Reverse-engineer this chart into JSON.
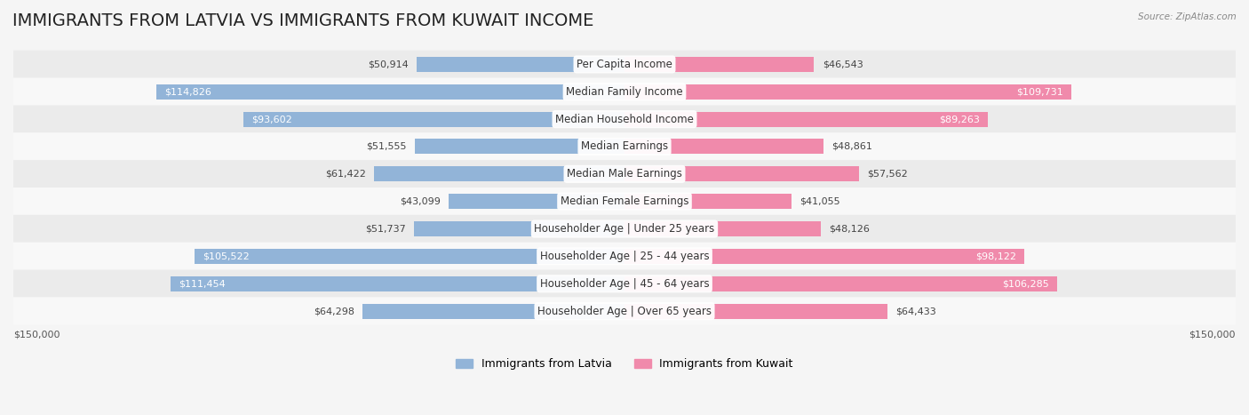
{
  "title": "IMMIGRANTS FROM LATVIA VS IMMIGRANTS FROM KUWAIT INCOME",
  "source": "Source: ZipAtlas.com",
  "categories": [
    "Per Capita Income",
    "Median Family Income",
    "Median Household Income",
    "Median Earnings",
    "Median Male Earnings",
    "Median Female Earnings",
    "Householder Age | Under 25 years",
    "Householder Age | 25 - 44 years",
    "Householder Age | 45 - 64 years",
    "Householder Age | Over 65 years"
  ],
  "latvia_values": [
    50914,
    114826,
    93602,
    51555,
    61422,
    43099,
    51737,
    105522,
    111454,
    64298
  ],
  "kuwait_values": [
    46543,
    109731,
    89263,
    48861,
    57562,
    41055,
    48126,
    98122,
    106285,
    64433
  ],
  "latvia_color": "#92b4d8",
  "kuwait_color": "#f08aab",
  "latvia_label": "Immigrants from Latvia",
  "kuwait_label": "Immigrants from Kuwait",
  "max_value": 150000,
  "bar_height": 0.55,
  "background_color": "#f5f5f5",
  "row_bg_colors": [
    "#f0f0f0",
    "#ffffff"
  ],
  "title_fontsize": 14,
  "label_fontsize": 8.5,
  "value_fontsize": 8,
  "legend_fontsize": 9,
  "axis_label": "$150,000"
}
